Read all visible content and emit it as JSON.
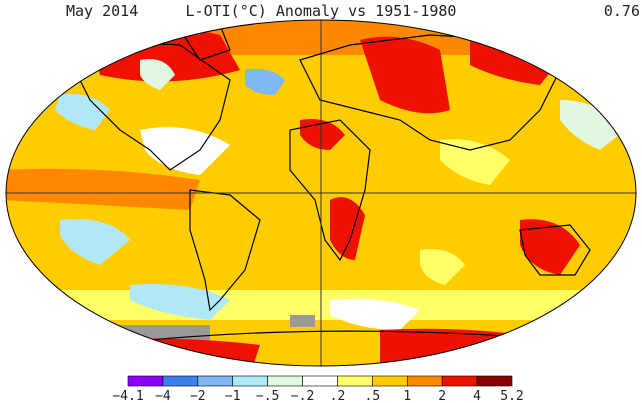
{
  "header": {
    "date": "May 2014",
    "title": "L-OTI(°C) Anomaly vs 1951-1980",
    "global_mean": "0.76"
  },
  "legend": {
    "bins": [
      {
        "color": "#8B00FF"
      },
      {
        "color": "#3F7FE8"
      },
      {
        "color": "#7FB8F0"
      },
      {
        "color": "#B0E8F8"
      },
      {
        "color": "#E0F8E0"
      },
      {
        "color": "#FFFFFF"
      },
      {
        "color": "#FFFF66"
      },
      {
        "color": "#FFCC00"
      },
      {
        "color": "#FF8800"
      },
      {
        "color": "#EE1100"
      },
      {
        "color": "#880000"
      }
    ],
    "ticks": [
      "−4.1",
      "−4",
      "−2",
      "−1",
      "−.5",
      "−.2",
      ".2",
      ".5",
      "1",
      "2",
      "4",
      "5.2"
    ]
  },
  "colors": {
    "ocean_base": "#FFCC00",
    "land_outline": "#000000",
    "no_data": "#999999"
  }
}
